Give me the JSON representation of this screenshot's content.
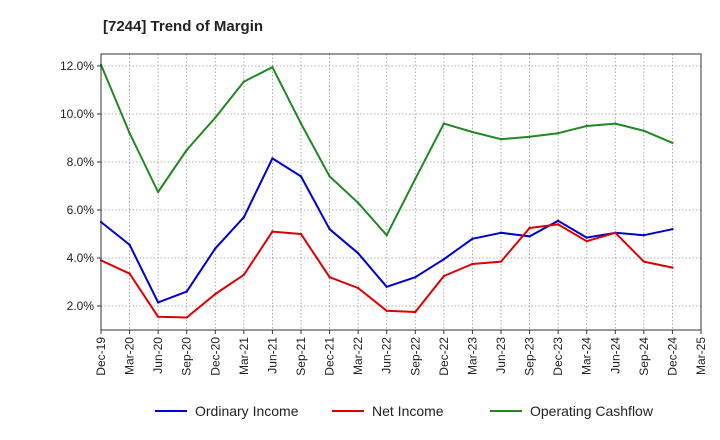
{
  "chart_data": {
    "type": "line",
    "title": "[7244]  Trend of Margin",
    "xlabel": "",
    "ylabel": "",
    "x": [
      "Dec-19",
      "Mar-20",
      "Jun-20",
      "Sep-20",
      "Dec-20",
      "Mar-21",
      "Jun-21",
      "Sep-21",
      "Dec-21",
      "Mar-22",
      "Jun-22",
      "Sep-22",
      "Dec-22",
      "Mar-23",
      "Jun-23",
      "Sep-23",
      "Dec-23",
      "Mar-24",
      "Jun-24",
      "Sep-24",
      "Dec-24",
      "Mar-25"
    ],
    "ylim": [
      1.0,
      12.5
    ],
    "yticks": [
      2.0,
      4.0,
      6.0,
      8.0,
      10.0,
      12.0
    ],
    "ytick_labels": [
      "2.0%",
      "4.0%",
      "6.0%",
      "8.0%",
      "10.0%",
      "12.0%"
    ],
    "grid": true,
    "legend_position": "bottom",
    "series": [
      {
        "name": "Ordinary Income",
        "color": "#0000cc",
        "values": [
          5.5,
          4.55,
          2.15,
          2.6,
          4.4,
          5.7,
          8.15,
          7.4,
          5.2,
          4.2,
          2.8,
          3.2,
          3.95,
          4.8,
          5.05,
          4.9,
          5.55,
          4.85,
          5.05,
          4.95,
          5.2,
          null
        ]
      },
      {
        "name": "Net Income",
        "color": "#dd0000",
        "values": [
          3.9,
          3.35,
          1.55,
          1.52,
          2.5,
          3.3,
          5.1,
          5.0,
          3.2,
          2.75,
          1.8,
          1.75,
          3.25,
          3.75,
          3.85,
          5.25,
          5.4,
          4.7,
          5.05,
          3.85,
          3.6,
          null
        ]
      },
      {
        "name": "Operating Cashflow",
        "color": "#228822",
        "values": [
          12.05,
          9.2,
          6.75,
          8.5,
          9.85,
          11.35,
          11.95,
          9.6,
          7.4,
          6.3,
          4.95,
          7.3,
          9.6,
          9.25,
          8.95,
          9.05,
          9.2,
          9.5,
          9.6,
          9.3,
          8.8,
          null
        ]
      }
    ]
  }
}
